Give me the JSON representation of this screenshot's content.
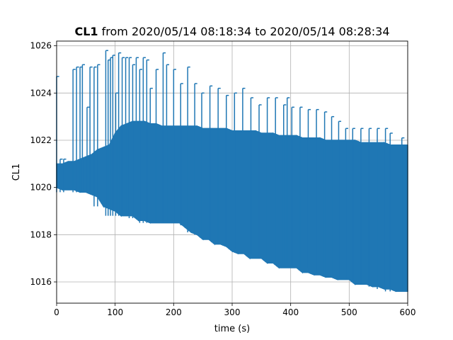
{
  "chart_data": {
    "type": "line",
    "title_bold": "CL1",
    "title_rest": " from 2020/05/14 08:18:34 to 2020/05/14 08:28:34",
    "xlabel": "time (s)",
    "ylabel": "CL1",
    "xlim": [
      0,
      600
    ],
    "ylim": [
      1015.1,
      1026.2
    ],
    "xticks": [
      0,
      100,
      200,
      300,
      400,
      500,
      600
    ],
    "yticks": [
      1016,
      1018,
      1020,
      1022,
      1024,
      1026
    ],
    "grid": true,
    "legend": "none",
    "series": [
      {
        "color": "#1f77b4",
        "envelope": {
          "x": [
            0,
            10,
            20,
            30,
            40,
            50,
            60,
            70,
            80,
            90,
            100,
            110,
            120,
            130,
            140,
            150,
            160,
            170,
            180,
            190,
            200,
            210,
            220,
            230,
            240,
            250,
            260,
            270,
            280,
            290,
            300,
            310,
            320,
            330,
            340,
            350,
            360,
            370,
            380,
            390,
            400,
            410,
            420,
            430,
            440,
            450,
            460,
            470,
            480,
            490,
            500,
            510,
            520,
            530,
            540,
            550,
            560,
            570,
            580,
            590,
            600
          ],
          "low": [
            1020.0,
            1019.9,
            1019.9,
            1019.9,
            1019.8,
            1019.8,
            1019.7,
            1019.6,
            1019.2,
            1019.1,
            1019.0,
            1018.8,
            1018.8,
            1018.8,
            1018.6,
            1018.6,
            1018.5,
            1018.5,
            1018.5,
            1018.5,
            1018.5,
            1018.5,
            1018.3,
            1018.1,
            1018.0,
            1017.8,
            1017.8,
            1017.6,
            1017.6,
            1017.5,
            1017.3,
            1017.2,
            1017.2,
            1017.0,
            1017.0,
            1017.0,
            1016.8,
            1016.8,
            1016.6,
            1016.6,
            1016.6,
            1016.6,
            1016.4,
            1016.4,
            1016.3,
            1016.3,
            1016.2,
            1016.2,
            1016.1,
            1016.1,
            1016.1,
            1015.9,
            1015.9,
            1015.9,
            1015.8,
            1015.8,
            1015.7,
            1015.7,
            1015.6,
            1015.6,
            1015.6
          ],
          "high": [
            1021.0,
            1021.0,
            1021.1,
            1021.1,
            1021.2,
            1021.3,
            1021.4,
            1021.6,
            1021.7,
            1021.8,
            1022.3,
            1022.6,
            1022.7,
            1022.8,
            1022.8,
            1022.8,
            1022.7,
            1022.7,
            1022.6,
            1022.6,
            1022.6,
            1022.6,
            1022.6,
            1022.6,
            1022.6,
            1022.5,
            1022.5,
            1022.5,
            1022.5,
            1022.5,
            1022.4,
            1022.4,
            1022.4,
            1022.4,
            1022.4,
            1022.3,
            1022.3,
            1022.3,
            1022.2,
            1022.2,
            1022.2,
            1022.2,
            1022.1,
            1022.1,
            1022.1,
            1022.1,
            1022.0,
            1022.0,
            1022.0,
            1022.0,
            1022.0,
            1022.0,
            1021.9,
            1021.9,
            1021.9,
            1021.9,
            1021.9,
            1021.8,
            1021.8,
            1021.8,
            1021.8
          ]
        },
        "spikes": {
          "x": [
            0,
            6,
            12,
            28,
            34,
            40,
            44,
            52,
            57,
            64,
            70,
            84,
            88,
            92,
            96,
            101,
            106,
            112,
            118,
            124,
            130,
            136,
            142,
            148,
            154,
            160,
            170,
            182,
            188,
            200,
            212,
            224,
            236,
            248,
            262,
            276,
            290,
            304,
            318,
            332,
            346,
            360,
            374,
            388,
            394,
            402,
            416,
            430,
            444,
            458,
            470,
            482,
            494,
            506,
            520,
            534,
            548,
            562,
            570,
            590
          ],
          "low": [
            1019.8,
            1019.8,
            1019.8,
            1019.8,
            1019.8,
            1019.8,
            1019.8,
            1019.8,
            1019.8,
            1019.2,
            1019.2,
            1018.8,
            1018.8,
            1018.8,
            1018.8,
            1018.8,
            1018.8,
            1018.8,
            1018.8,
            1018.7,
            1018.7,
            1018.7,
            1018.5,
            1018.5,
            1018.5,
            1018.5,
            1018.5,
            1018.5,
            1018.5,
            1018.5,
            1018.4,
            1018.1,
            1018.0,
            1017.9,
            1017.8,
            1017.6,
            1017.5,
            1017.4,
            1017.3,
            1017.2,
            1017.0,
            1016.9,
            1016.8,
            1016.7,
            1016.8,
            1016.7,
            1016.6,
            1016.6,
            1016.4,
            1016.3,
            1016.2,
            1016.2,
            1016.1,
            1016.0,
            1015.9,
            1015.8,
            1015.7,
            1015.6,
            1015.6,
            1015.6
          ],
          "high": [
            1024.7,
            1021.2,
            1021.2,
            1025.0,
            1025.1,
            1025.1,
            1025.2,
            1023.4,
            1025.1,
            1025.1,
            1025.2,
            1025.8,
            1025.4,
            1025.5,
            1025.6,
            1024.0,
            1025.7,
            1025.5,
            1025.5,
            1025.5,
            1025.2,
            1025.5,
            1025.0,
            1025.5,
            1025.4,
            1024.2,
            1025.0,
            1025.7,
            1025.2,
            1025.0,
            1024.4,
            1025.1,
            1024.4,
            1024.0,
            1024.3,
            1024.2,
            1023.9,
            1024.0,
            1024.2,
            1023.8,
            1023.5,
            1023.8,
            1023.8,
            1023.5,
            1023.8,
            1023.4,
            1023.4,
            1023.3,
            1023.3,
            1023.2,
            1023.0,
            1022.8,
            1022.5,
            1022.5,
            1022.5,
            1022.5,
            1022.5,
            1022.5,
            1022.3,
            1022.1
          ]
        }
      }
    ]
  }
}
